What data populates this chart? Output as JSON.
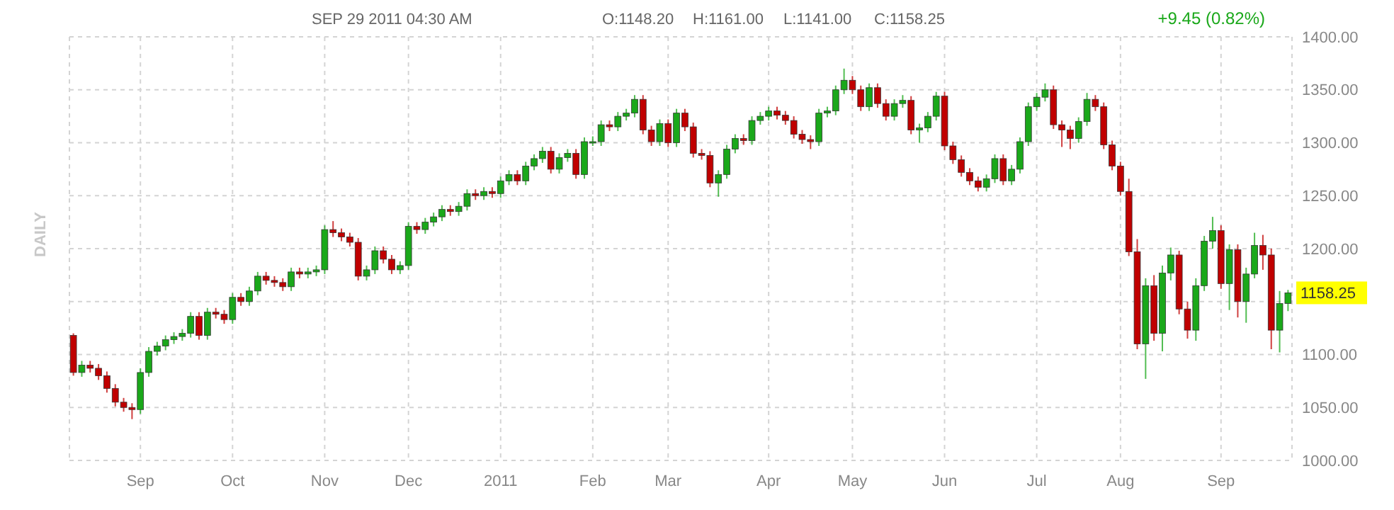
{
  "chart_data": {
    "type": "candlestick",
    "subtitle": "SEP 29 2011 04:30 AM",
    "ylabel": "DAILY",
    "annotations": [
      "O:1148.20",
      "H:1161.00",
      "L:1141.00",
      "C:1158.25",
      "+9.45 (0.82%)",
      "1158.25"
    ],
    "categories": [
      null,
      null,
      null,
      null,
      null,
      null,
      null,
      null,
      "Sep",
      null,
      null,
      null,
      null,
      null,
      null,
      null,
      null,
      null,
      null,
      "Oct",
      null,
      null,
      null,
      null,
      null,
      null,
      null,
      null,
      null,
      null,
      "Nov",
      null,
      null,
      null,
      null,
      null,
      null,
      null,
      null,
      null,
      "Dec",
      null,
      null,
      null,
      null,
      null,
      null,
      null,
      null,
      null,
      null,
      "2011",
      null,
      null,
      null,
      null,
      null,
      null,
      null,
      null,
      null,
      null,
      "Feb",
      null,
      null,
      null,
      null,
      null,
      null,
      null,
      null,
      "Mar",
      null,
      null,
      null,
      null,
      null,
      null,
      null,
      null,
      null,
      null,
      null,
      "Apr",
      null,
      null,
      null,
      null,
      null,
      null,
      null,
      null,
      null,
      "May",
      null,
      null,
      null,
      null,
      null,
      null,
      null,
      null,
      null,
      null,
      "Jun",
      null,
      null,
      null,
      null,
      null,
      null,
      null,
      null,
      null,
      null,
      "Jul",
      null,
      null,
      null,
      null,
      null,
      null,
      null,
      null,
      null,
      "Aug",
      null,
      null,
      null,
      null,
      null,
      null,
      null,
      null,
      null,
      null,
      null,
      "Sep",
      null,
      null,
      null,
      null,
      null,
      null,
      null,
      null
    ],
    "ohlc": [
      [
        1118,
        1120,
        1080,
        1083
      ],
      [
        1083,
        1094,
        1079,
        1090
      ],
      [
        1090,
        1094,
        1083,
        1087
      ],
      [
        1087,
        1091,
        1076,
        1080
      ],
      [
        1080,
        1084,
        1064,
        1068
      ],
      [
        1068,
        1072,
        1051,
        1055
      ],
      [
        1055,
        1059,
        1046,
        1050
      ],
      [
        1050,
        1054,
        1039,
        1048
      ],
      [
        1048,
        1087,
        1044,
        1083
      ],
      [
        1083,
        1107,
        1079,
        1103
      ],
      [
        1103,
        1112,
        1099,
        1108
      ],
      [
        1108,
        1118,
        1104,
        1114
      ],
      [
        1114,
        1121,
        1110,
        1117
      ],
      [
        1117,
        1124,
        1113,
        1120
      ],
      [
        1120,
        1140,
        1116,
        1136
      ],
      [
        1136,
        1140,
        1114,
        1118
      ],
      [
        1118,
        1144,
        1114,
        1140
      ],
      [
        1140,
        1144,
        1134,
        1138
      ],
      [
        1138,
        1142,
        1129,
        1133
      ],
      [
        1133,
        1158,
        1129,
        1154
      ],
      [
        1154,
        1158,
        1146,
        1150
      ],
      [
        1150,
        1164,
        1146,
        1160
      ],
      [
        1160,
        1178,
        1156,
        1174
      ],
      [
        1174,
        1178,
        1166,
        1170
      ],
      [
        1170,
        1174,
        1164,
        1168
      ],
      [
        1168,
        1172,
        1160,
        1164
      ],
      [
        1164,
        1182,
        1160,
        1178
      ],
      [
        1178,
        1182,
        1172,
        1176
      ],
      [
        1176,
        1182,
        1172,
        1178
      ],
      [
        1178,
        1184,
        1174,
        1180
      ],
      [
        1180,
        1222,
        1176,
        1218
      ],
      [
        1218,
        1226,
        1211,
        1215
      ],
      [
        1215,
        1219,
        1207,
        1211
      ],
      [
        1211,
        1215,
        1202,
        1206
      ],
      [
        1206,
        1210,
        1170,
        1174
      ],
      [
        1174,
        1184,
        1170,
        1180
      ],
      [
        1180,
        1202,
        1176,
        1198
      ],
      [
        1198,
        1202,
        1186,
        1190
      ],
      [
        1190,
        1194,
        1176,
        1180
      ],
      [
        1180,
        1188,
        1176,
        1184
      ],
      [
        1184,
        1225,
        1180,
        1221
      ],
      [
        1221,
        1225,
        1214,
        1218
      ],
      [
        1218,
        1229,
        1214,
        1225
      ],
      [
        1225,
        1234,
        1221,
        1230
      ],
      [
        1230,
        1241,
        1226,
        1237
      ],
      [
        1237,
        1241,
        1231,
        1235
      ],
      [
        1235,
        1244,
        1231,
        1240
      ],
      [
        1240,
        1256,
        1236,
        1252
      ],
      [
        1252,
        1256,
        1246,
        1250
      ],
      [
        1250,
        1258,
        1246,
        1254
      ],
      [
        1254,
        1258,
        1248,
        1252
      ],
      [
        1252,
        1268,
        1248,
        1264
      ],
      [
        1264,
        1274,
        1260,
        1270
      ],
      [
        1270,
        1274,
        1260,
        1264
      ],
      [
        1264,
        1282,
        1260,
        1278
      ],
      [
        1278,
        1289,
        1274,
        1285
      ],
      [
        1285,
        1296,
        1281,
        1292
      ],
      [
        1292,
        1296,
        1271,
        1275
      ],
      [
        1275,
        1290,
        1271,
        1286
      ],
      [
        1286,
        1294,
        1282,
        1290
      ],
      [
        1290,
        1294,
        1266,
        1270
      ],
      [
        1270,
        1305,
        1266,
        1301
      ],
      [
        1301,
        1306,
        1297,
        1301
      ],
      [
        1301,
        1321,
        1297,
        1317
      ],
      [
        1317,
        1321,
        1311,
        1315
      ],
      [
        1315,
        1329,
        1311,
        1325
      ],
      [
        1325,
        1332,
        1321,
        1328
      ],
      [
        1328,
        1345,
        1324,
        1341
      ],
      [
        1341,
        1345,
        1308,
        1312
      ],
      [
        1312,
        1316,
        1297,
        1301
      ],
      [
        1301,
        1322,
        1297,
        1318
      ],
      [
        1318,
        1322,
        1296,
        1300
      ],
      [
        1300,
        1332,
        1296,
        1328
      ],
      [
        1328,
        1332,
        1311,
        1315
      ],
      [
        1315,
        1319,
        1286,
        1290
      ],
      [
        1290,
        1294,
        1284,
        1288
      ],
      [
        1288,
        1292,
        1258,
        1262
      ],
      [
        1262,
        1274,
        1249,
        1270
      ],
      [
        1270,
        1298,
        1266,
        1294
      ],
      [
        1294,
        1308,
        1290,
        1304
      ],
      [
        1304,
        1308,
        1298,
        1302
      ],
      [
        1302,
        1325,
        1298,
        1321
      ],
      [
        1321,
        1329,
        1317,
        1325
      ],
      [
        1325,
        1334,
        1321,
        1330
      ],
      [
        1330,
        1334,
        1322,
        1326
      ],
      [
        1326,
        1330,
        1317,
        1321
      ],
      [
        1321,
        1325,
        1304,
        1308
      ],
      [
        1308,
        1312,
        1299,
        1303
      ],
      [
        1303,
        1307,
        1294,
        1301
      ],
      [
        1301,
        1332,
        1297,
        1328
      ],
      [
        1328,
        1334,
        1324,
        1330
      ],
      [
        1330,
        1354,
        1326,
        1350
      ],
      [
        1350,
        1370,
        1346,
        1359
      ],
      [
        1359,
        1363,
        1346,
        1350
      ],
      [
        1350,
        1354,
        1330,
        1334
      ],
      [
        1334,
        1356,
        1330,
        1352
      ],
      [
        1352,
        1356,
        1333,
        1337
      ],
      [
        1337,
        1341,
        1321,
        1325
      ],
      [
        1325,
        1341,
        1321,
        1337
      ],
      [
        1337,
        1345,
        1333,
        1340
      ],
      [
        1340,
        1344,
        1308,
        1312
      ],
      [
        1312,
        1318,
        1300,
        1314
      ],
      [
        1314,
        1329,
        1310,
        1325
      ],
      [
        1325,
        1348,
        1321,
        1344
      ],
      [
        1344,
        1348,
        1293,
        1297
      ],
      [
        1297,
        1301,
        1280,
        1284
      ],
      [
        1284,
        1288,
        1268,
        1272
      ],
      [
        1272,
        1276,
        1260,
        1264
      ],
      [
        1264,
        1268,
        1254,
        1258
      ],
      [
        1258,
        1270,
        1254,
        1266
      ],
      [
        1266,
        1289,
        1262,
        1285
      ],
      [
        1285,
        1289,
        1260,
        1264
      ],
      [
        1264,
        1279,
        1260,
        1275
      ],
      [
        1275,
        1305,
        1271,
        1301
      ],
      [
        1301,
        1338,
        1297,
        1334
      ],
      [
        1334,
        1347,
        1330,
        1343
      ],
      [
        1343,
        1356,
        1339,
        1350
      ],
      [
        1350,
        1354,
        1313,
        1317
      ],
      [
        1317,
        1321,
        1296,
        1312
      ],
      [
        1312,
        1316,
        1294,
        1304
      ],
      [
        1304,
        1324,
        1300,
        1320
      ],
      [
        1320,
        1347,
        1316,
        1341
      ],
      [
        1341,
        1345,
        1330,
        1334
      ],
      [
        1334,
        1338,
        1294,
        1298
      ],
      [
        1298,
        1302,
        1274,
        1278
      ],
      [
        1278,
        1282,
        1250,
        1254
      ],
      [
        1254,
        1266,
        1193,
        1197
      ],
      [
        1197,
        1209,
        1105,
        1110
      ],
      [
        1110,
        1172,
        1077,
        1165
      ],
      [
        1165,
        1175,
        1113,
        1120
      ],
      [
        1120,
        1184,
        1103,
        1177
      ],
      [
        1177,
        1201,
        1170,
        1194
      ],
      [
        1194,
        1198,
        1138,
        1143
      ],
      [
        1143,
        1150,
        1115,
        1123
      ],
      [
        1123,
        1172,
        1113,
        1165
      ],
      [
        1165,
        1212,
        1160,
        1207
      ],
      [
        1207,
        1230,
        1200,
        1217
      ],
      [
        1217,
        1222,
        1162,
        1167
      ],
      [
        1167,
        1204,
        1142,
        1199
      ],
      [
        1199,
        1204,
        1135,
        1150
      ],
      [
        1150,
        1182,
        1130,
        1176
      ],
      [
        1176,
        1215,
        1172,
        1203
      ],
      [
        1203,
        1213,
        1180,
        1194
      ],
      [
        1194,
        1200,
        1105,
        1123
      ],
      [
        1123,
        1160,
        1102,
        1148.2
      ],
      [
        1148.2,
        1161,
        1141,
        1158.25
      ]
    ],
    "ylim": [
      1000,
      1400
    ],
    "yticks": [
      {
        "value": 1000,
        "label": "1000.00"
      },
      {
        "value": 1050,
        "label": "1050.00"
      },
      {
        "value": 1100,
        "label": "1100.00"
      },
      {
        "value": 1150,
        "label": null
      },
      {
        "value": 1200,
        "label": "1200.00"
      },
      {
        "value": 1250,
        "label": "1250.00"
      },
      {
        "value": 1300,
        "label": "1300.00"
      },
      {
        "value": 1350,
        "label": "1350.00"
      },
      {
        "value": 1400,
        "label": "1400.00"
      }
    ],
    "grid": true
  }
}
